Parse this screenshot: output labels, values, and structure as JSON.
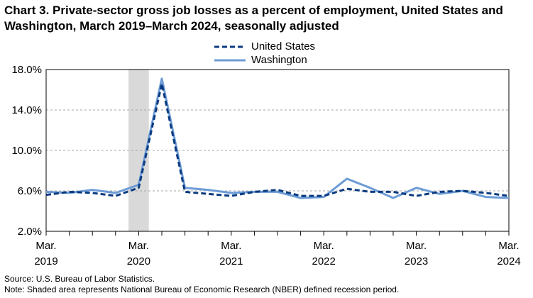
{
  "title": "Chart 3. Private-sector gross job losses as a percent of employment, United States and Washington, March 2019–March 2024, seasonally adjusted",
  "source": "Source: U.S. Bureau of Labor Statistics.",
  "note": "Note: Shaded area represents National Bureau of Economic Research (NBER) defined recession period.",
  "colors": {
    "us": "#0b3b80",
    "wa": "#6d9cd6",
    "recession": "#d9d9d9",
    "grid": "#a6a6a6"
  },
  "chart_data": {
    "type": "line",
    "xlabel": "",
    "ylabel": "",
    "ylim": [
      2.0,
      18.0
    ],
    "yticks": [
      "2.0%",
      "6.0%",
      "10.0%",
      "14.0%",
      "18.0%"
    ],
    "ytick_values": [
      2,
      6,
      10,
      14,
      18
    ],
    "xticks": [
      {
        "line1": "Mar.",
        "line2": "2019",
        "index": 0
      },
      {
        "line1": "Mar.",
        "line2": "2020",
        "index": 4
      },
      {
        "line1": "Mar.",
        "line2": "2021",
        "index": 8
      },
      {
        "line1": "Mar.",
        "line2": "2022",
        "index": 12
      },
      {
        "line1": "Mar.",
        "line2": "2023",
        "index": 16
      },
      {
        "line1": "Mar.",
        "line2": "2024",
        "index": 20
      }
    ],
    "x": [
      "Mar 2019",
      "Jun 2019",
      "Sep 2019",
      "Dec 2019",
      "Mar 2020",
      "Jun 2020",
      "Sep 2020",
      "Dec 2020",
      "Mar 2021",
      "Jun 2021",
      "Sep 2021",
      "Dec 2021",
      "Mar 2022",
      "Jun 2022",
      "Sep 2022",
      "Dec 2022",
      "Mar 2023",
      "Jun 2023",
      "Sep 2023",
      "Dec 2023",
      "Mar 2024"
    ],
    "recession": {
      "start_index": 3.5,
      "end_index": 4.5
    },
    "grid": true,
    "legend_position": "top-center",
    "series": [
      {
        "name": "United States",
        "style": "dashed",
        "values": [
          5.6,
          5.9,
          5.8,
          5.5,
          6.3,
          16.6,
          5.9,
          5.7,
          5.5,
          5.9,
          6.1,
          5.5,
          5.5,
          6.2,
          5.9,
          5.9,
          5.5,
          5.9,
          6.0,
          5.8,
          5.5
        ]
      },
      {
        "name": "Washington",
        "style": "solid",
        "values": [
          5.9,
          5.8,
          6.1,
          5.8,
          6.6,
          17.1,
          6.3,
          6.1,
          5.8,
          5.9,
          5.9,
          5.3,
          5.4,
          7.2,
          6.3,
          5.3,
          6.3,
          5.7,
          6.0,
          5.4,
          5.3
        ]
      }
    ]
  }
}
